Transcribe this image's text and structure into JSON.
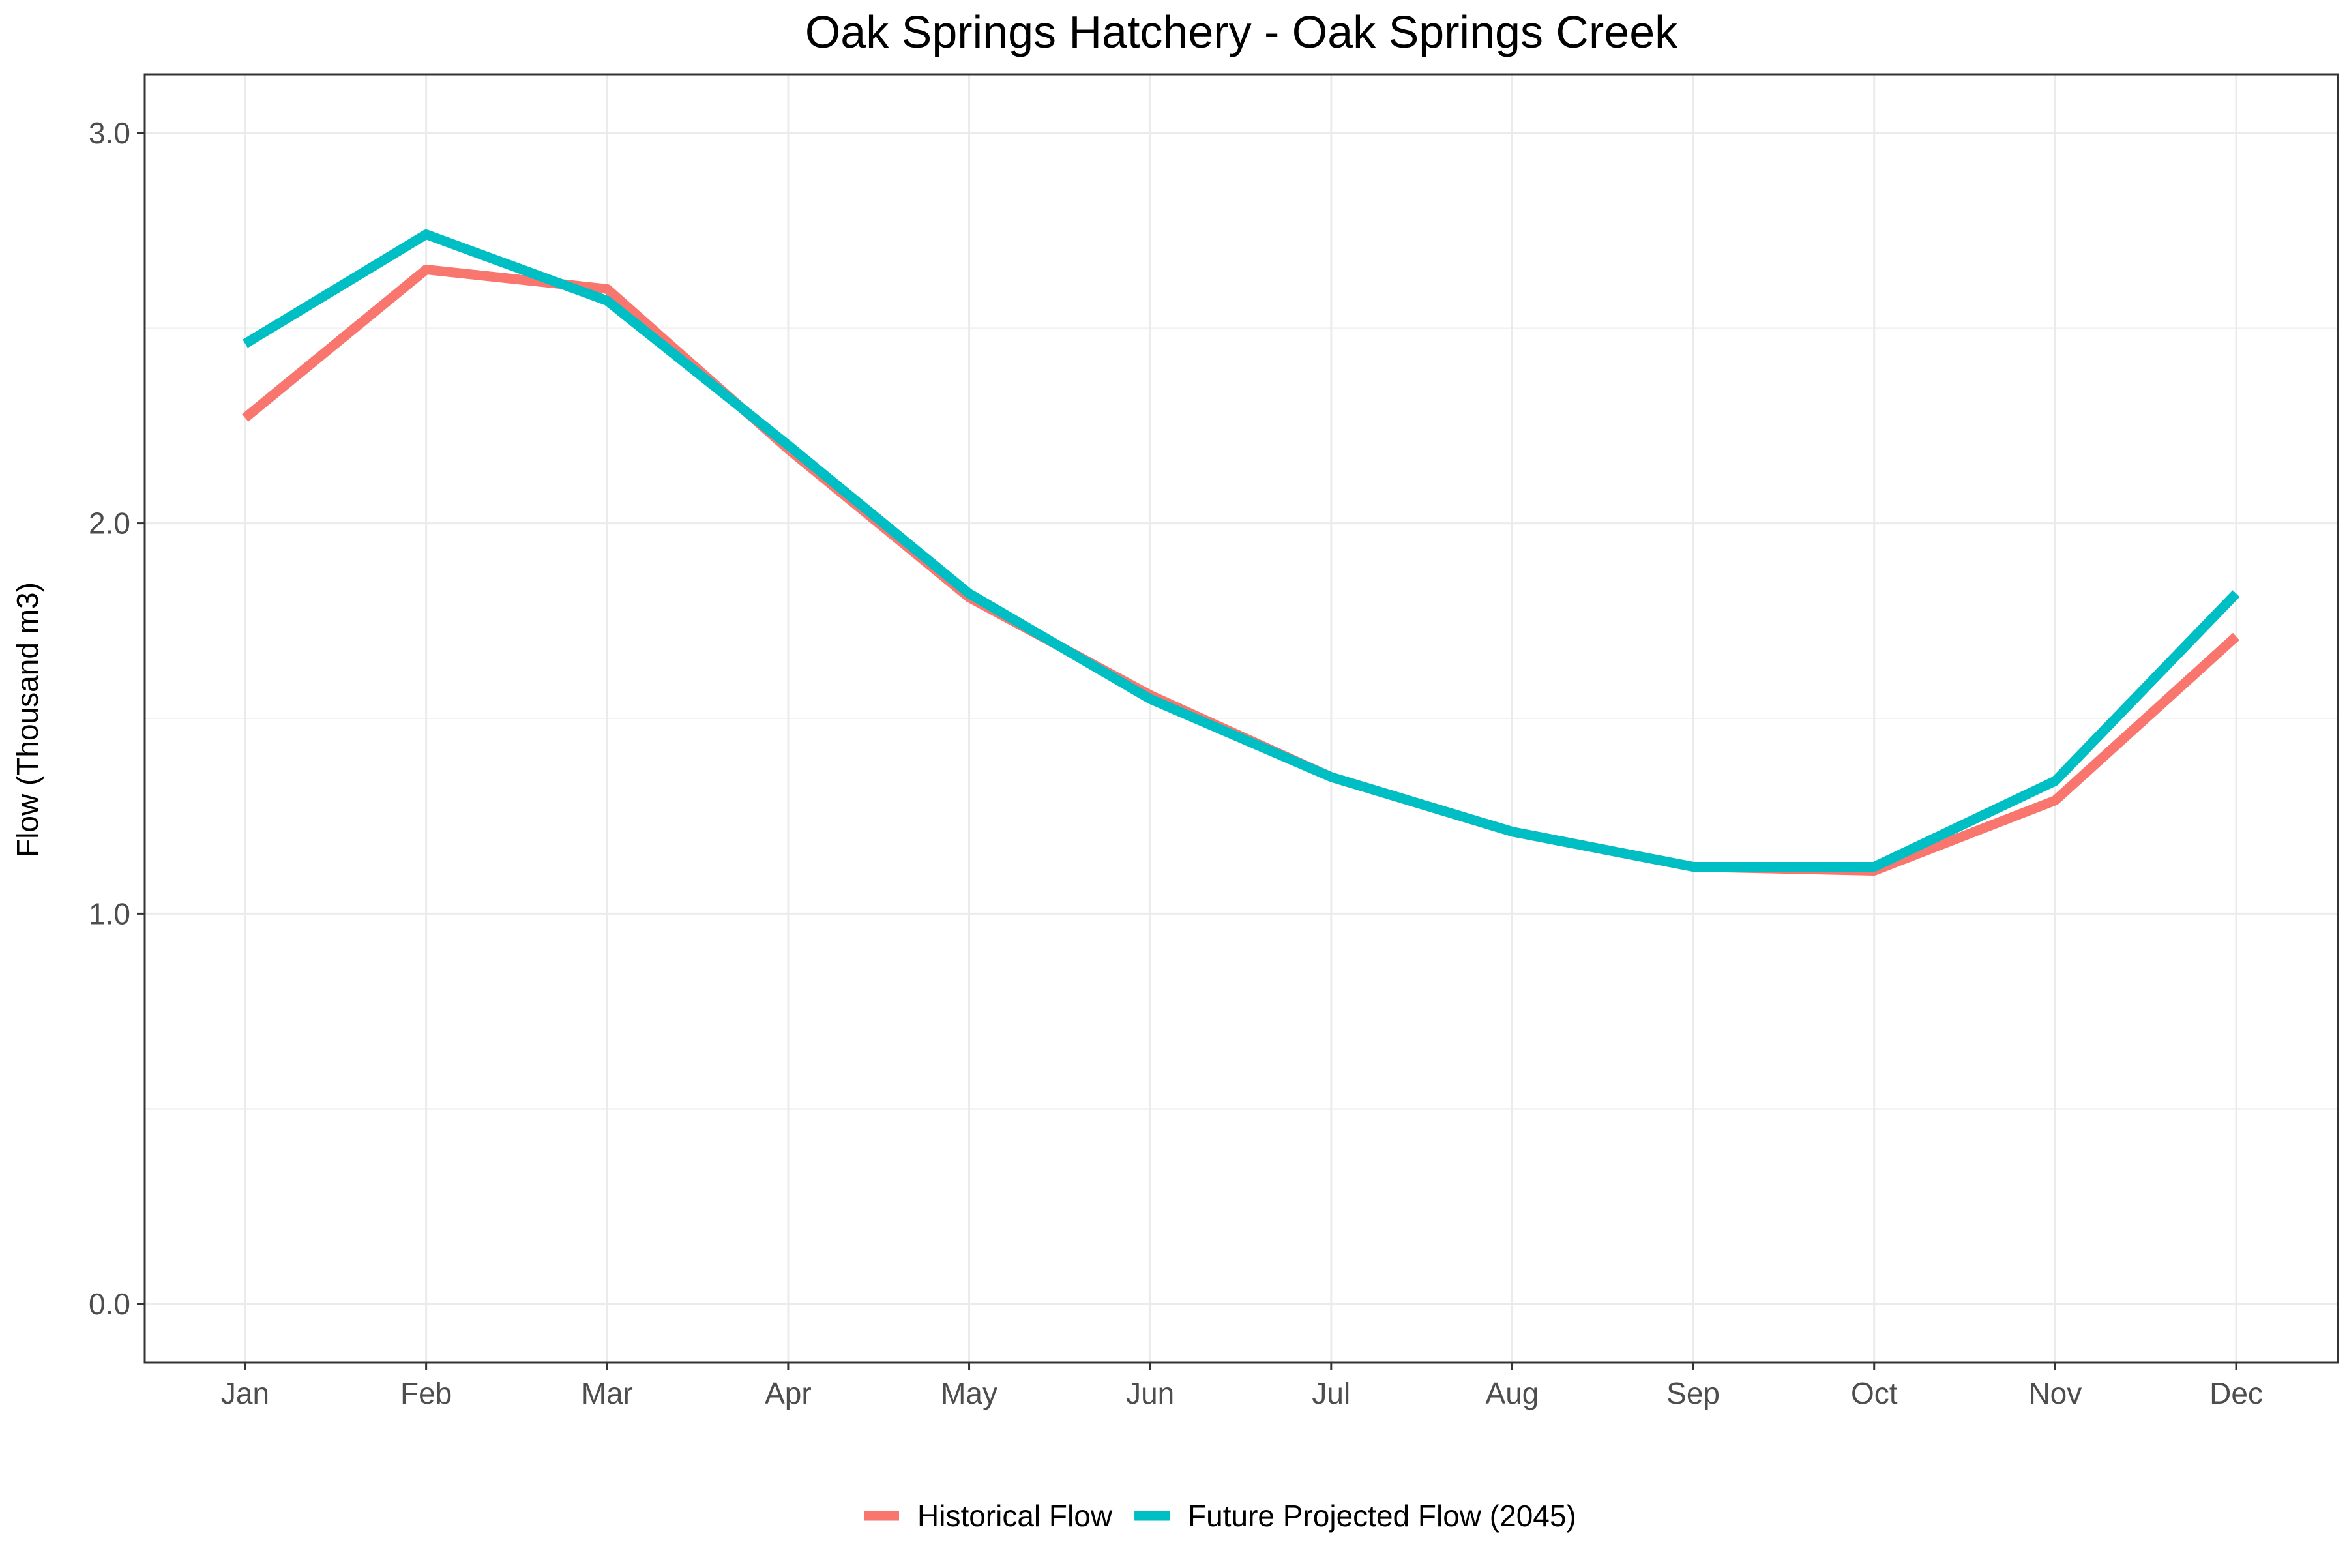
{
  "chart_data": {
    "type": "line",
    "title": "Oak Springs Hatchery - Oak Springs Creek",
    "xlabel": "",
    "ylabel": "Flow (Thousand m3)",
    "categories": [
      "Jan",
      "Feb",
      "Mar",
      "Apr",
      "May",
      "Jun",
      "Jul",
      "Aug",
      "Sep",
      "Oct",
      "Nov",
      "Dec"
    ],
    "ylim": [
      -0.15,
      3.15
    ],
    "yticks": [
      0.0,
      1.0,
      2.0,
      3.0
    ],
    "ytick_labels": [
      "0.0",
      "1.0",
      "2.0",
      "3.0"
    ],
    "grid": true,
    "legend_position": "bottom",
    "series": [
      {
        "name": "Historical Flow",
        "color": "#F8766D",
        "values": [
          2.27,
          2.65,
          2.6,
          2.19,
          1.81,
          1.56,
          1.35,
          1.21,
          1.12,
          1.11,
          1.29,
          1.71
        ]
      },
      {
        "name": "Future Projected Flow (2045)",
        "color": "#00BFC4",
        "values": [
          2.46,
          2.74,
          2.57,
          2.2,
          1.82,
          1.55,
          1.35,
          1.21,
          1.12,
          1.12,
          1.34,
          1.82
        ]
      }
    ]
  }
}
